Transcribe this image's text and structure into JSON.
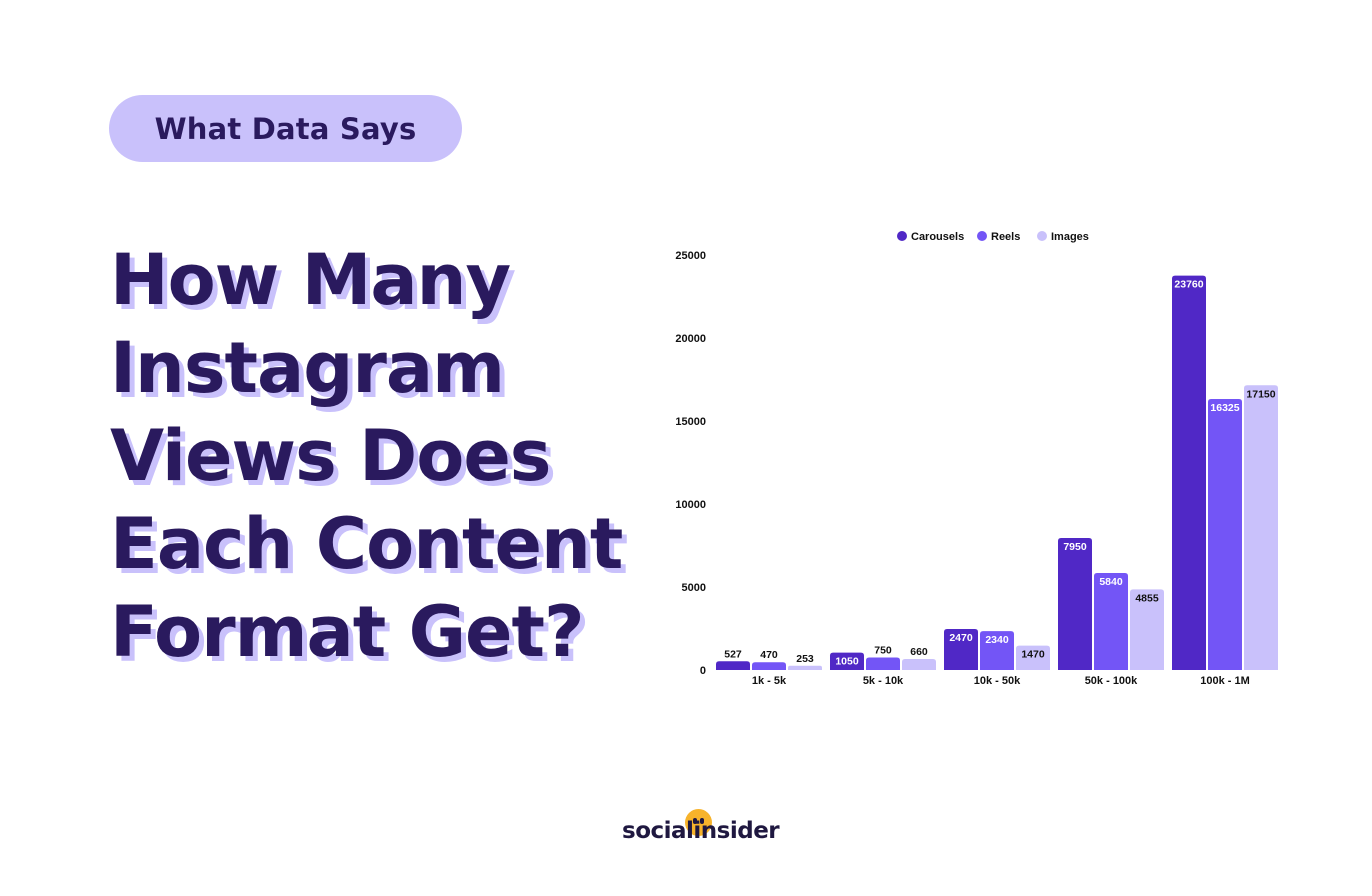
{
  "badge": {
    "label": "What Data Says"
  },
  "headline": {
    "lines": [
      "How Many",
      "Instagram",
      "Views Does",
      "Each Content",
      "Format Get?"
    ]
  },
  "brand": {
    "name": "socialinsider"
  },
  "colors": {
    "carousels": "#5028c6",
    "reels": "#7355f6",
    "images": "#c9c1fb",
    "text_dark": "#2a1a5e",
    "badge_bg": "#c9c1fb",
    "brand_dot": "#f7b32b"
  },
  "chart_data": {
    "type": "bar",
    "categories": [
      "1k - 5k",
      "5k - 10k",
      "10k - 50k",
      "50k - 100k",
      "100k - 1M"
    ],
    "series": [
      {
        "name": "Carousels",
        "color": "#5028c6",
        "values": [
          527,
          1050,
          2470,
          7950,
          23760
        ]
      },
      {
        "name": "Reels",
        "color": "#7355f6",
        "values": [
          470,
          750,
          2340,
          5840,
          16325
        ]
      },
      {
        "name": "Images",
        "color": "#c9c1fb",
        "values": [
          253,
          660,
          1470,
          4855,
          17150
        ]
      }
    ],
    "yticks": [
      0,
      5000,
      10000,
      15000,
      20000,
      25000
    ],
    "ylim": [
      0,
      25000
    ],
    "legend": "top-center",
    "grid": false,
    "data_labels": true
  }
}
